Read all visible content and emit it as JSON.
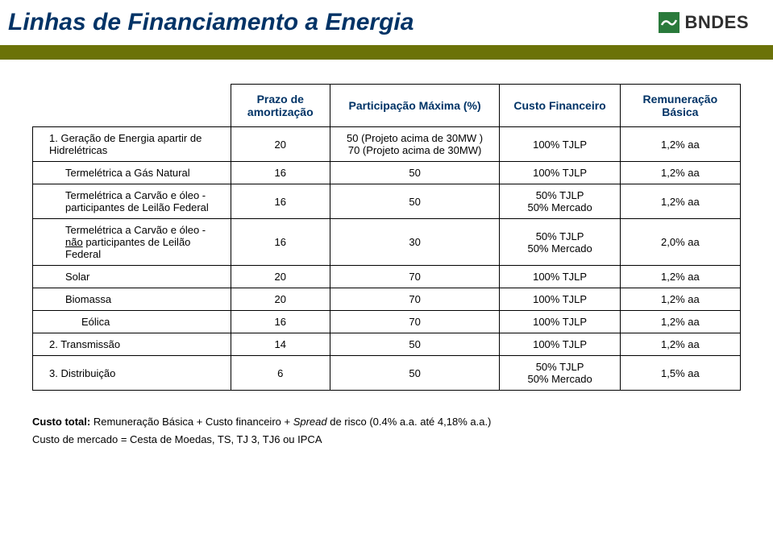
{
  "header": {
    "title": "Linhas de Financiamento a Energia",
    "logo_text": "BNDES"
  },
  "colors": {
    "title_color": "#003366",
    "olive_strip": "#6b7208",
    "logo_green": "#2a7a3b",
    "logo_text": "#2f2f2f"
  },
  "table": {
    "headers": [
      "",
      "Prazo de amortização",
      "Participação Máxima (%)",
      "Custo Financeiro",
      "Remuneração Básica"
    ],
    "rows": [
      {
        "label": "1. Geração de Energia apartir de Hidrelétricas",
        "indent": 0,
        "c2": "20",
        "c3": "50 (Projeto acima de 30MW )\n70 (Projeto acima de 30MW)",
        "c4": "100% TJLP",
        "c5": "1,2% aa"
      },
      {
        "label": "Termelétrica a Gás Natural",
        "indent": 1,
        "c2": "16",
        "c3": "50",
        "c4": "100% TJLP",
        "c5": "1,2% aa"
      },
      {
        "label": "Termelétrica a Carvão e óleo - participantes de Leilão Federal",
        "indent": 1,
        "c2": "16",
        "c3": "50",
        "c4": "50% TJLP\n50% Mercado",
        "c5": "1,2% aa"
      },
      {
        "label": "Termelétrica a Carvão e óleo - não participantes de Leilão Federal",
        "indent": 1,
        "underline_word": "não",
        "c2": "16",
        "c3": "30",
        "c4": "50% TJLP\n50% Mercado",
        "c5": "2,0% aa"
      },
      {
        "label": "Solar",
        "indent": 1,
        "c2": "20",
        "c3": "70",
        "c4": "100% TJLP",
        "c5": "1,2% aa"
      },
      {
        "label": "Biomassa",
        "indent": 1,
        "c2": "20",
        "c3": "70",
        "c4": "100% TJLP",
        "c5": "1,2% aa"
      },
      {
        "label": "Eólica",
        "indent": 2,
        "c2": "16",
        "c3": "70",
        "c4": "100% TJLP",
        "c5": "1,2% aa"
      },
      {
        "label": "2. Transmissão",
        "indent": 0,
        "c2": "14",
        "c3": "50",
        "c4": "100% TJLP",
        "c5": "1,2% aa"
      },
      {
        "label": "3. Distribuição",
        "indent": 0,
        "c2": "6",
        "c3": "50",
        "c4": "50% TJLP\n50% Mercado",
        "c5": "1,5% aa"
      }
    ]
  },
  "footer": {
    "line1_prefix": "Custo total:",
    "line1_rest": " Remuneração Básica  + Custo financeiro + ",
    "line1_italic": "Spread",
    "line1_after": " de risco (0.4% a.a. até 4,18% a.a.)",
    "line2": "Custo de mercado = Cesta de Moedas, TS, TJ 3, TJ6 ou IPCA"
  }
}
